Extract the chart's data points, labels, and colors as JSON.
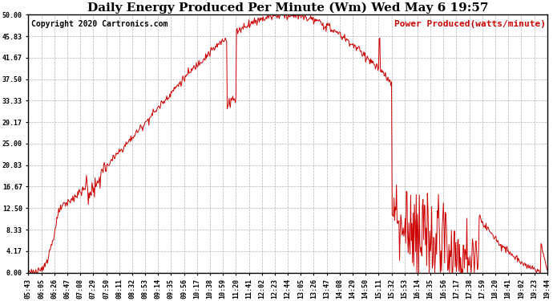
{
  "title": "Daily Energy Produced Per Minute (Wm) Wed May 6 19:57",
  "copyright": "Copyright 2020 Cartronics.com",
  "legend_label": "Power Produced(watts/minute)",
  "line_color": "#cc0000",
  "bg_color": "#ffffff",
  "grid_color": "#aaaaaa",
  "ylim": [
    0,
    50
  ],
  "yticks": [
    0.0,
    4.17,
    8.33,
    12.5,
    16.67,
    20.83,
    25.0,
    29.17,
    33.33,
    37.5,
    41.67,
    45.83,
    50.0
  ],
  "ytick_labels": [
    "0.00",
    "4.17",
    "8.33",
    "12.50",
    "16.67",
    "20.83",
    "25.00",
    "29.17",
    "33.33",
    "37.50",
    "41.67",
    "45.83",
    "50.00"
  ],
  "xtick_labels": [
    "05:43",
    "06:05",
    "06:26",
    "06:47",
    "07:08",
    "07:29",
    "07:50",
    "08:11",
    "08:32",
    "08:53",
    "09:14",
    "09:35",
    "09:56",
    "10:17",
    "10:38",
    "10:59",
    "11:20",
    "11:41",
    "12:02",
    "12:23",
    "12:44",
    "13:05",
    "13:26",
    "13:47",
    "14:08",
    "14:29",
    "14:50",
    "15:11",
    "15:32",
    "15:53",
    "16:14",
    "16:35",
    "16:56",
    "17:17",
    "17:38",
    "17:59",
    "18:20",
    "18:41",
    "19:02",
    "19:23",
    "19:44"
  ],
  "title_fontsize": 11,
  "copyright_fontsize": 7,
  "legend_fontsize": 8,
  "ytick_fontsize": 8,
  "xtick_fontsize": 6
}
